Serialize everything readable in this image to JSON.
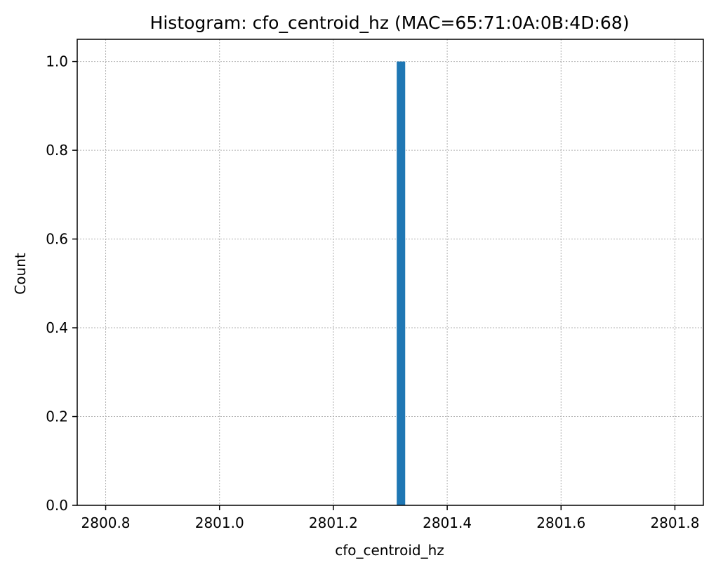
{
  "chart_data": {
    "type": "bar",
    "title": "Histogram: cfo_centroid_hz (MAC=65:71:0A:0B:4D:68)",
    "xlabel": "cfo_centroid_hz",
    "ylabel": "Count",
    "xlim": [
      2800.75,
      2801.85
    ],
    "ylim": [
      0.0,
      1.05
    ],
    "xticks": [
      2800.8,
      2801.0,
      2801.2,
      2801.4,
      2801.6,
      2801.8
    ],
    "xtick_labels": [
      "2800.8",
      "2801.0",
      "2801.2",
      "2801.4",
      "2801.6",
      "2801.8"
    ],
    "yticks": [
      0.0,
      0.2,
      0.4,
      0.6,
      0.8,
      1.0
    ],
    "ytick_labels": [
      "0.0",
      "0.2",
      "0.4",
      "0.6",
      "0.8",
      "1.0"
    ],
    "bins": [
      {
        "x_start": 2801.3113,
        "x_end": 2801.3262,
        "count": 1
      }
    ],
    "grid": true,
    "bar_color": "#1f77b4"
  }
}
